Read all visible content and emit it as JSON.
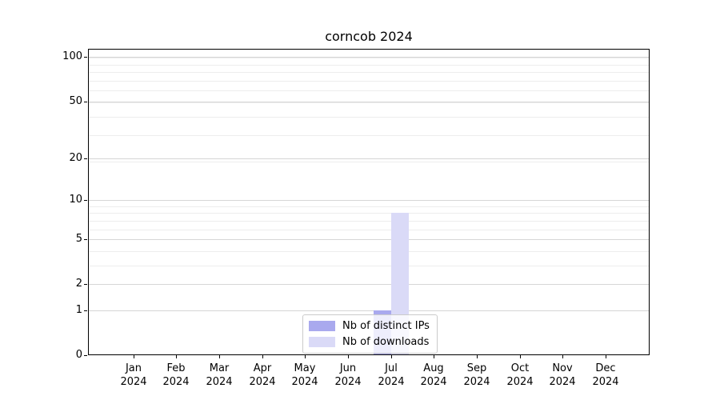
{
  "figure": {
    "background": "#ffffff"
  },
  "chart_data": {
    "type": "bar",
    "title": "corncob 2024",
    "x_categories": [
      {
        "month": "Jan",
        "year": "2024"
      },
      {
        "month": "Feb",
        "year": "2024"
      },
      {
        "month": "Mar",
        "year": "2024"
      },
      {
        "month": "Apr",
        "year": "2024"
      },
      {
        "month": "May",
        "year": "2024"
      },
      {
        "month": "Jun",
        "year": "2024"
      },
      {
        "month": "Jul",
        "year": "2024"
      },
      {
        "month": "Aug",
        "year": "2024"
      },
      {
        "month": "Sep",
        "year": "2024"
      },
      {
        "month": "Oct",
        "year": "2024"
      },
      {
        "month": "Nov",
        "year": "2024"
      },
      {
        "month": "Dec",
        "year": "2024"
      }
    ],
    "series": [
      {
        "name": "Nb of distinct IPs",
        "color": "#a9a9ee",
        "values": [
          0,
          0,
          0,
          0,
          0,
          0,
          1,
          0,
          0,
          0,
          0,
          0
        ]
      },
      {
        "name": "Nb of downloads",
        "color": "#dadaf7",
        "values": [
          0,
          0,
          0,
          0,
          0,
          0,
          8,
          0,
          0,
          0,
          0,
          0
        ]
      }
    ],
    "yscale": "log1p",
    "ytick_labels": [
      0,
      1,
      2,
      5,
      10,
      20,
      50,
      100
    ],
    "ylim": [
      0,
      113
    ],
    "grid": {
      "axis": "y",
      "which": "both",
      "minor_values": [
        1,
        2,
        3,
        4,
        5,
        6,
        7,
        8,
        9,
        19,
        29,
        39,
        49,
        59,
        69,
        79,
        89,
        99
      ],
      "major_values": [
        1,
        2,
        5,
        10,
        20,
        50,
        100
      ],
      "minor_color": "#ededed",
      "major_color": "#d6d6d6"
    },
    "legend": {
      "position": "lower center",
      "entries": [
        "Nb of distinct IPs",
        "Nb of downloads"
      ]
    }
  }
}
